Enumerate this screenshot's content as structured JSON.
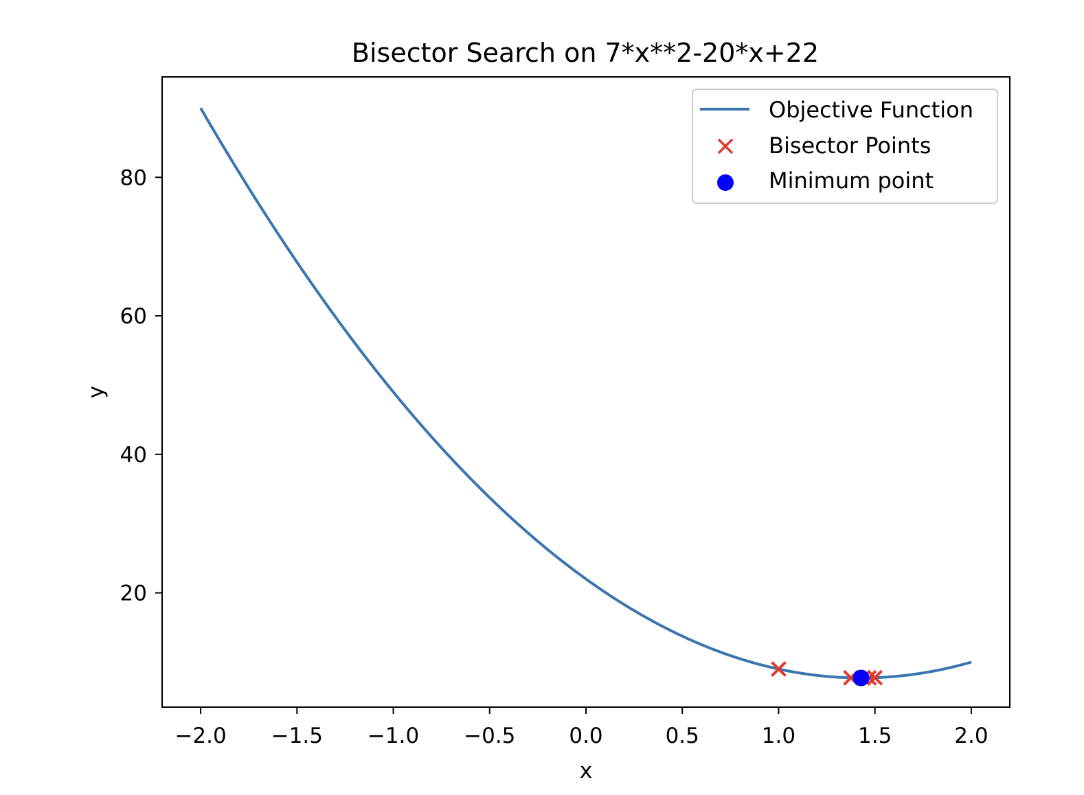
{
  "chart_data": {
    "type": "line",
    "title": "Bisector Search on 7*x**2-20*x+22",
    "xlabel": "x",
    "ylabel": "y",
    "xlim": [
      -2.2,
      2.2
    ],
    "ylim": [
      3.5,
      94.5
    ],
    "grid": false,
    "legend_position": "top-right",
    "x_ticks": [
      -2.0,
      -1.5,
      -1.0,
      -0.5,
      0.0,
      0.5,
      1.0,
      1.5,
      2.0
    ],
    "x_tick_labels": [
      "−2.0",
      "−1.5",
      "−1.0",
      "−0.5",
      "0.0",
      "0.5",
      "1.0",
      "1.5",
      "2.0"
    ],
    "y_ticks": [
      20,
      40,
      60,
      80
    ],
    "y_tick_labels": [
      "20",
      "40",
      "60",
      "80"
    ],
    "series": [
      {
        "name": "Objective Function",
        "kind": "line",
        "color": "#3b75af",
        "function": {
          "a": 7,
          "b": -20,
          "c": 22
        },
        "x_range": [
          -2.0,
          2.0
        ]
      },
      {
        "name": "Bisector Points",
        "kind": "scatter",
        "marker": "x",
        "color": "#e03a2f",
        "points": [
          {
            "x": 1.0,
            "y": 9.0
          },
          {
            "x": 1.375,
            "y": 7.734
          },
          {
            "x": 1.4375,
            "y": 7.715
          },
          {
            "x": 1.46875,
            "y": 7.726
          },
          {
            "x": 1.5,
            "y": 7.75
          }
        ]
      },
      {
        "name": "Minimum point",
        "kind": "scatter",
        "marker": "circle",
        "color": "#0000ff",
        "points": [
          {
            "x": 1.4286,
            "y": 7.714
          }
        ]
      }
    ]
  }
}
